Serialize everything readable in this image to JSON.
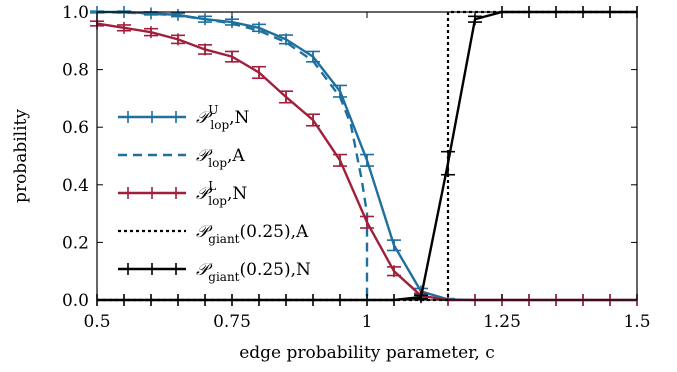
{
  "chart_data": {
    "type": "line",
    "title": "",
    "xlabel": "edge probability parameter, c",
    "ylabel": "probability",
    "xlim": [
      0.5,
      1.5
    ],
    "ylim": [
      0.0,
      1.0
    ],
    "xticks": [
      0.5,
      0.75,
      1.0,
      1.25,
      1.5
    ],
    "xtick_labels": [
      "0.5",
      "0.75",
      "1",
      "1.25",
      "1.5"
    ],
    "yticks": [
      0.0,
      0.2,
      0.4,
      0.6,
      0.8,
      1.0
    ],
    "ytick_labels": [
      "0.0",
      "0.2",
      "0.4",
      "0.6",
      "0.8",
      "1.0"
    ],
    "grid": false,
    "legend_position": "center-left",
    "series": [
      {
        "key": "lop_upper_numeric",
        "legend_main": "𝒫",
        "legend_sub": "lop",
        "legend_sup": "U",
        "legend_suffix": ",N",
        "color": "#1f6f9f",
        "style": "solid-errorbar",
        "x": [
          0.5,
          0.55,
          0.6,
          0.65,
          0.7,
          0.75,
          0.8,
          0.85,
          0.9,
          0.95,
          1.0,
          1.05,
          1.1,
          1.15,
          1.2,
          1.25,
          1.3,
          1.35,
          1.4,
          1.45,
          1.5
        ],
        "y": [
          1.0,
          1.0,
          0.995,
          0.99,
          0.975,
          0.965,
          0.945,
          0.905,
          0.845,
          0.725,
          0.485,
          0.19,
          0.03,
          0.002,
          0.0,
          0.0,
          0.0,
          0.0,
          0.0,
          0.0,
          0.0
        ],
        "err": [
          0.003,
          0.003,
          0.005,
          0.006,
          0.01,
          0.01,
          0.012,
          0.015,
          0.018,
          0.02,
          0.02,
          0.018,
          0.01,
          0.003,
          0.0,
          0.0,
          0.0,
          0.0,
          0.0,
          0.0,
          0.0
        ]
      },
      {
        "key": "lop_analytic",
        "legend_main": "𝒫",
        "legend_sub": "lop",
        "legend_sup": "",
        "legend_suffix": ",A",
        "color": "#1f6f9f",
        "style": "dashed",
        "x": [
          0.5,
          0.55,
          0.6,
          0.65,
          0.7,
          0.75,
          0.8,
          0.85,
          0.9,
          0.95,
          0.97,
          0.99,
          1.0,
          1.0
        ],
        "y": [
          1.0,
          0.998,
          0.994,
          0.988,
          0.975,
          0.96,
          0.935,
          0.895,
          0.83,
          0.705,
          0.61,
          0.42,
          0.3,
          0.0
        ]
      },
      {
        "key": "lop_lower_numeric",
        "legend_main": "𝒫",
        "legend_sub": "lop",
        "legend_sup": "L",
        "legend_suffix": ",N",
        "color": "#a0203c",
        "style": "solid-errorbar",
        "x": [
          0.5,
          0.55,
          0.6,
          0.65,
          0.7,
          0.75,
          0.8,
          0.85,
          0.9,
          0.95,
          1.0,
          1.05,
          1.1,
          1.15,
          1.2,
          1.25,
          1.3,
          1.35,
          1.4,
          1.45,
          1.5
        ],
        "y": [
          0.96,
          0.945,
          0.93,
          0.905,
          0.87,
          0.845,
          0.79,
          0.705,
          0.625,
          0.485,
          0.27,
          0.1,
          0.015,
          0.0,
          0.0,
          0.0,
          0.0,
          0.0,
          0.0,
          0.0,
          0.0
        ],
        "err": [
          0.008,
          0.01,
          0.012,
          0.014,
          0.016,
          0.018,
          0.02,
          0.02,
          0.02,
          0.02,
          0.02,
          0.015,
          0.008,
          0.0,
          0.0,
          0.0,
          0.0,
          0.0,
          0.0,
          0.0,
          0.0
        ]
      },
      {
        "key": "giant_analytic",
        "legend_main": "𝒫",
        "legend_sub": "giant",
        "legend_sup": "",
        "legend_suffix": "(0.25),A",
        "color": "#000000",
        "style": "dotted",
        "x": [
          0.5,
          1.15,
          1.15,
          1.5
        ],
        "y": [
          0.0,
          0.0,
          1.0,
          1.0
        ]
      },
      {
        "key": "giant_numeric",
        "legend_main": "𝒫",
        "legend_sub": "giant",
        "legend_sup": "",
        "legend_suffix": "(0.25),N",
        "color": "#000000",
        "style": "solid-errorbar",
        "x": [
          0.5,
          0.55,
          0.6,
          0.65,
          0.7,
          0.75,
          0.8,
          0.85,
          0.9,
          0.95,
          1.0,
          1.05,
          1.1,
          1.15,
          1.2,
          1.25,
          1.3,
          1.35,
          1.4,
          1.45,
          1.5
        ],
        "y": [
          0.0,
          0.0,
          0.0,
          0.0,
          0.0,
          0.0,
          0.0,
          0.0,
          0.0,
          0.0,
          0.0,
          0.0,
          0.01,
          0.475,
          0.975,
          1.0,
          1.0,
          1.0,
          1.0,
          1.0,
          1.0
        ],
        "err": [
          0.0,
          0.0,
          0.0,
          0.0,
          0.0,
          0.0,
          0.0,
          0.0,
          0.0,
          0.0,
          0.0,
          0.0,
          0.006,
          0.04,
          0.01,
          0.0,
          0.0,
          0.0,
          0.0,
          0.0,
          0.0
        ]
      }
    ]
  }
}
